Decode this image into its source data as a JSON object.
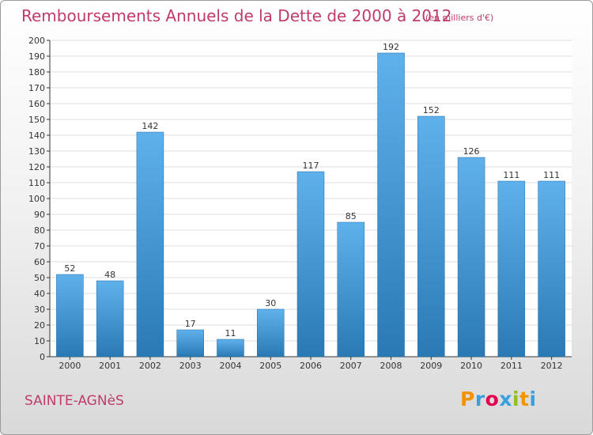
{
  "header": {
    "title": "Remboursements Annuels de la Dette de 2000 à 2012",
    "unit": "(en milliers d'€)"
  },
  "footer": {
    "commune": "SAINTE-AGNèS",
    "logo_letters": [
      "P",
      "r",
      "o",
      "x",
      "i",
      "t",
      "i"
    ],
    "logo_colors": [
      "#f29400",
      "#3a9fdd",
      "#e3004f",
      "#3a9fdd",
      "#93c01f",
      "#f29400",
      "#3a9fdd"
    ]
  },
  "colors": {
    "bar_light": "#5fb1ec",
    "bar_dark": "#2a79b5",
    "text_accent": "#c03a6b"
  },
  "chart_data": {
    "type": "bar",
    "title": "Remboursements Annuels de la Dette de 2000 à 2012",
    "subtitle": "(en milliers d'€)",
    "xlabel": "",
    "ylabel": "",
    "categories": [
      "2000",
      "2001",
      "2002",
      "2003",
      "2004",
      "2005",
      "2006",
      "2007",
      "2008",
      "2009",
      "2010",
      "2011",
      "2012"
    ],
    "values": [
      52,
      48,
      142,
      17,
      11,
      30,
      117,
      85,
      192,
      152,
      126,
      111,
      111
    ],
    "ylim": [
      0,
      200
    ],
    "yticks": [
      0,
      10,
      20,
      30,
      40,
      50,
      60,
      70,
      80,
      90,
      100,
      110,
      120,
      130,
      140,
      150,
      160,
      170,
      180,
      190,
      200
    ],
    "grid": true,
    "legend": "none"
  }
}
